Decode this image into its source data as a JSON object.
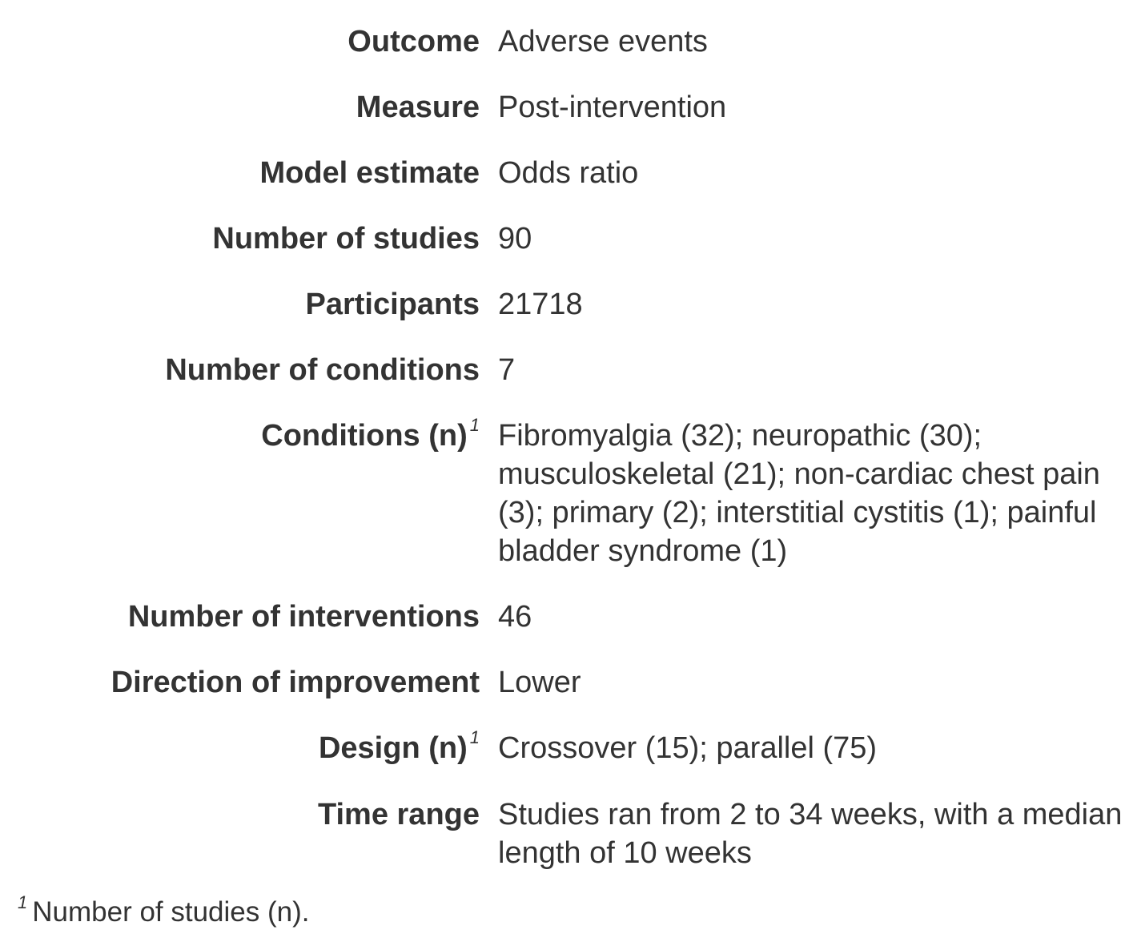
{
  "rows": [
    {
      "label": "Outcome",
      "value": "Adverse events"
    },
    {
      "label": "Measure",
      "value": "Post-intervention"
    },
    {
      "label": "Model estimate",
      "value": "Odds ratio"
    },
    {
      "label": "Number of studies",
      "value": "90"
    },
    {
      "label": "Participants",
      "value": "21718"
    },
    {
      "label": "Number of conditions",
      "value": "7"
    },
    {
      "label": "Conditions (n)",
      "label_note": "1",
      "value": "Fibromyalgia (32); neuropathic (30); musculoskeletal (21); non-cardiac chest pain (3); primary (2); interstitial cystitis (1); painful bladder syndrome (1)"
    },
    {
      "label": "Number of interventions",
      "value": "46"
    },
    {
      "label": "Direction of improvement",
      "value": "Lower"
    },
    {
      "label": "Design (n)",
      "label_note": "1",
      "value": "Crossover (15); parallel (75)"
    },
    {
      "label": "Time range",
      "value": "Studies ran from 2 to 34 weeks, with a median length of 10 weeks"
    }
  ],
  "footnote": {
    "marker": "1",
    "text": "Number of studies (n)."
  }
}
